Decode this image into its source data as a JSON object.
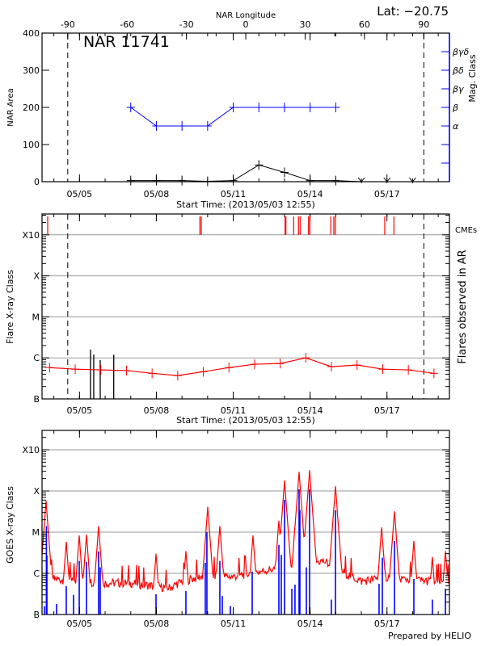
{
  "footer": "Prepared by HELIO",
  "chart_data": [
    {
      "type": "line",
      "title": "NAR 11741",
      "annotation": "Lat: −20.75",
      "xlabel": "Start Time: (2013/05/03 12:55)",
      "start_time": "05/03 12:55",
      "x_ticks": [
        "05/05",
        "05/08",
        "05/11",
        "05/14",
        "05/17"
      ],
      "top_axis": {
        "label": "NAR Longitude",
        "ticks": [
          "-90",
          "-60",
          "-30",
          "0",
          "30",
          "60",
          "90"
        ]
      },
      "limb_longitudes": [
        -90,
        90
      ],
      "limb_times": [
        "05/04 13:00",
        "05/18 10:30"
      ],
      "ylabel": "NAR Area",
      "ylim": [
        0,
        400
      ],
      "y_ticks": [
        "0",
        "100",
        "200",
        "300",
        "400"
      ],
      "y2label": "Mag. Class",
      "y2_ticks": [
        "",
        "",
        "α",
        "β",
        "βγ",
        "βδ",
        "βγδ"
      ],
      "colors": {
        "area": "#000000",
        "mag_class": "#0000ff"
      },
      "area": [
        [
          "05/07 00:00",
          3
        ],
        [
          "05/08 00:00",
          3
        ],
        [
          "05/09 00:00",
          3
        ],
        [
          "05/10 00:00",
          1
        ],
        [
          "05/11 00:00",
          3
        ],
        [
          "05/12 00:00",
          45
        ],
        [
          "05/13 00:00",
          25
        ],
        [
          "05/14 00:00",
          3
        ],
        [
          "05/15 00:00",
          3
        ]
      ],
      "area_no_data": [
        "05/16 00:00",
        "05/17 00:00",
        "05/18 00:00"
      ],
      "mag_class": [
        [
          "05/07 00:00",
          "β"
        ],
        [
          "05/08 00:00",
          "α"
        ],
        [
          "05/09 00:00",
          "α"
        ],
        [
          "05/10 00:00",
          "α"
        ],
        [
          "05/11 00:00",
          "β"
        ],
        [
          "05/12 00:00",
          "β"
        ],
        [
          "05/13 00:00",
          "β"
        ],
        [
          "05/14 00:00",
          "β"
        ],
        [
          "05/15 00:00",
          "β"
        ]
      ]
    },
    {
      "type": "line",
      "xlabel": "Start Time: (2013/05/03 12:55)",
      "x_ticks": [
        "05/05",
        "05/08",
        "05/11",
        "05/14",
        "05/17"
      ],
      "ylabel": "Flare X-ray Class",
      "y_ticks": [
        "B",
        "C",
        "M",
        "X",
        "X10"
      ],
      "y_scale": "log",
      "y2label": "Flares observed in AR",
      "cme_label": "CMEs",
      "grid": true,
      "colors": {
        "flare_class": "#ff0000",
        "cme": "#ff0000",
        "observed_flares": "#000000"
      },
      "flare_class": [
        [
          "05/03 20:00",
          "B5.8"
        ],
        [
          "05/04 20:00",
          "B5.3"
        ],
        [
          "05/05 20:00",
          "B5.1"
        ],
        [
          "05/06 20:00",
          "B4.9"
        ],
        [
          "05/07 20:00",
          "B4.2"
        ],
        [
          "05/08 20:00",
          "B3.7"
        ],
        [
          "05/09 20:00",
          "B4.6"
        ],
        [
          "05/10 20:00",
          "B5.8"
        ],
        [
          "05/11 20:00",
          "B7.0"
        ],
        [
          "05/12 20:00",
          "B7.3"
        ],
        [
          "05/13 20:00",
          "C1.0"
        ],
        [
          "05/14 20:00",
          "B6.1"
        ],
        [
          "05/15 20:00",
          "B6.7"
        ],
        [
          "05/16 20:00",
          "B5.3"
        ],
        [
          "05/17 20:00",
          "B5.1"
        ],
        [
          "05/18 20:00",
          "B4.2"
        ]
      ],
      "observed_flares": [
        [
          "05/05 10:20",
          "C1.6"
        ],
        [
          "05/05 13:20",
          "C1.2"
        ],
        [
          "05/05 19:25",
          "B8.8"
        ],
        [
          "05/06 08:05",
          "C1.2"
        ]
      ],
      "cmes": [
        "05/03 18:13",
        "05/09 16:47",
        "05/09 18:04",
        "05/13 00:35",
        "05/13 01:20",
        "05/13 08:36",
        "05/13 13:08",
        "05/13 14:40",
        "05/13 22:32",
        "05/13 23:44",
        "05/14 19:25",
        "05/14 22:13",
        "05/14 23:44",
        "05/16 21:55",
        "05/17 06:29"
      ]
    },
    {
      "type": "line",
      "x_ticks": [
        "05/05",
        "05/08",
        "05/11",
        "05/14",
        "05/17"
      ],
      "ylabel": "GOES X-ray Class",
      "y_ticks": [
        "B",
        "C",
        "M",
        "X",
        "X10"
      ],
      "y_scale": "log",
      "grid": true,
      "colors": {
        "long": "#ff0000",
        "short": "#0000ff"
      },
      "long_background": [
        [
          "05/03 12:55",
          "B8.7"
        ],
        [
          "05/04 00:00",
          "B7.3"
        ],
        [
          "05/05 00:00",
          "B6.4"
        ],
        [
          "05/06 00:00",
          "B5.8"
        ],
        [
          "05/07 00:00",
          "B5.8"
        ],
        [
          "05/08 12:00",
          "B4.4"
        ],
        [
          "05/09 00:00",
          "B6.4"
        ],
        [
          "05/10 00:00",
          "C0.9"
        ],
        [
          "05/11 00:00",
          "B8.3"
        ],
        [
          "05/12 00:00",
          "C1.1"
        ],
        [
          "05/13 12:00",
          "C1.6"
        ],
        [
          "05/14 12:00",
          "C2.0"
        ],
        [
          "05/15 12:00",
          "B9.1"
        ],
        [
          "05/16 00:00",
          "B6.4"
        ],
        [
          "05/17 00:00",
          "B8.0"
        ],
        [
          "05/18 00:00",
          "B7.0"
        ],
        [
          "05/19 10:30",
          "B5.8"
        ]
      ],
      "long_peaks": [
        [
          "05/03 16:42",
          "M5.8"
        ],
        [
          "05/04 11:37",
          "C5.8"
        ],
        [
          "05/04 23:45",
          "C8.3"
        ],
        [
          "05/05 06:33",
          "C8.7"
        ],
        [
          "05/05 17:54",
          "M1.4"
        ],
        [
          "05/07 23:40",
          "C3.0"
        ],
        [
          "05/09 03:40",
          "C3.5"
        ],
        [
          "05/10 00:07",
          "M4.1"
        ],
        [
          "05/10 11:28",
          "M1.4"
        ],
        [
          "05/11 18:30",
          "C8.3"
        ],
        [
          "05/12 18:45",
          "M1.9"
        ],
        [
          "05/13 00:03",
          "X1.8"
        ],
        [
          "05/13 09:50",
          "M1.4"
        ],
        [
          "05/13 13:40",
          "X2.9"
        ],
        [
          "05/13 23:30",
          "X3.2"
        ],
        [
          "05/14 23:45",
          "X1.3"
        ],
        [
          "05/16 19:00",
          "M1.3"
        ],
        [
          "05/17 07:00",
          "M3.2"
        ],
        [
          "05/18 01:10",
          "C6.1"
        ],
        [
          "05/18 18:30",
          "C2.5"
        ],
        [
          "05/19 06:45",
          "C3.5"
        ]
      ],
      "short_peaks": [
        [
          "05/03 15:11",
          "B1.6"
        ],
        [
          "05/03 17:00",
          "M1.4"
        ],
        [
          "05/03 17:30",
          "C2.7"
        ],
        [
          "05/04 02:33",
          "B1.8"
        ],
        [
          "05/04 11:37",
          "B4.9"
        ],
        [
          "05/04 18:26",
          "B3.0"
        ],
        [
          "05/04 23:45",
          "C2.0"
        ],
        [
          "05/05 06:33",
          "C1.9"
        ],
        [
          "05/05 17:54",
          "C3.4"
        ],
        [
          "05/05 19:25",
          "C1.4"
        ],
        [
          "05/07 23:40",
          "B3.1"
        ],
        [
          "05/09 03:40",
          "B3.7"
        ],
        [
          "05/09 21:50",
          "C1.8"
        ],
        [
          "05/09 23:20",
          "M1.0"
        ],
        [
          "05/10 11:28",
          "C2.0"
        ],
        [
          "05/10 13:45",
          "B2.8"
        ],
        [
          "05/10 21:18",
          "B1.6"
        ],
        [
          "05/11 17:45",
          "C1.1"
        ],
        [
          "05/12 18:45",
          "C4.9"
        ],
        [
          "05/12 21:00",
          "C2.8"
        ],
        [
          "05/13 00:03",
          "M6.1"
        ],
        [
          "05/13 06:55",
          "B4.2"
        ],
        [
          "05/13 09:50",
          "B5.3"
        ],
        [
          "05/13 13:40",
          "X1.1"
        ],
        [
          "05/13 14:25",
          "M3.4"
        ],
        [
          "05/13 20:30",
          "C1.4"
        ],
        [
          "05/13 23:30",
          "X1.1"
        ],
        [
          "05/14 19:55",
          "B2.3"
        ],
        [
          "05/14 23:45",
          "M3.4"
        ],
        [
          "05/16 16:35",
          "B5.6"
        ],
        [
          "05/16 19:40",
          "C2.4"
        ],
        [
          "05/17 07:00",
          "C6.1"
        ],
        [
          "05/18 01:10",
          "B7.3"
        ],
        [
          "05/18 18:30",
          "B2.3"
        ],
        [
          "05/19 06:45",
          "B4.2"
        ]
      ]
    }
  ]
}
